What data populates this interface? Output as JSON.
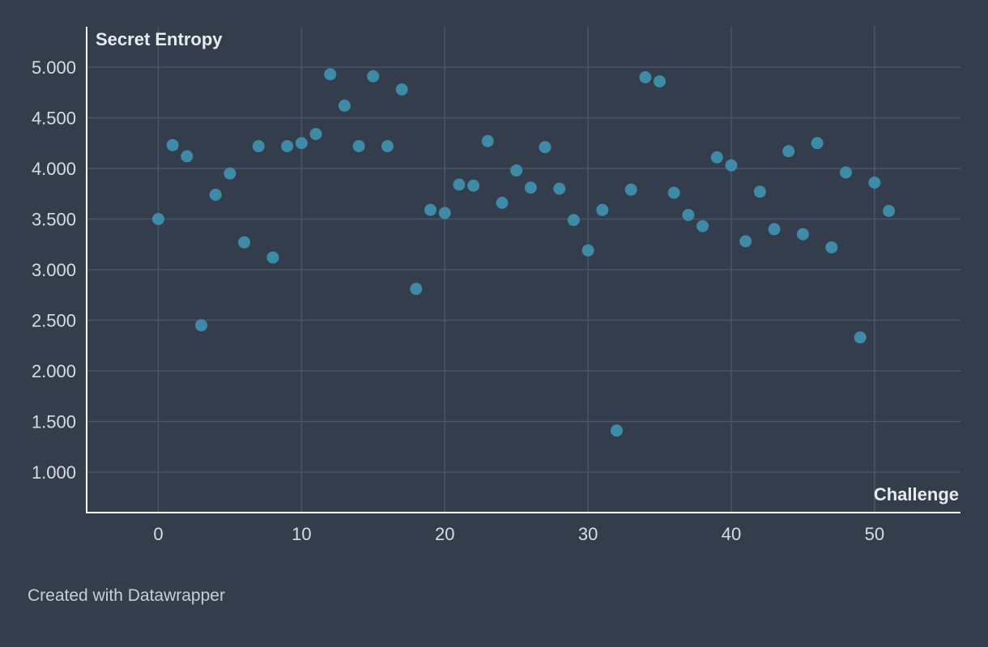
{
  "chart_data": {
    "type": "scatter",
    "title": "",
    "xlabel": "Challenge",
    "ylabel": "Secret Entropy",
    "xlim": [
      -5,
      56
    ],
    "ylim": [
      0.6,
      5.4
    ],
    "x_ticks": [
      0,
      10,
      20,
      30,
      40,
      50
    ],
    "y_ticks": [
      1.0,
      1.5,
      2.0,
      2.5,
      3.0,
      3.5,
      4.0,
      4.5,
      5.0
    ],
    "y_tick_labels": [
      "1.000",
      "1.500",
      "2.000",
      "2.500",
      "3.000",
      "3.500",
      "4.000",
      "4.500",
      "5.000"
    ],
    "grid": true,
    "colors": {
      "background": "#333d4c",
      "grid": "#4b5565",
      "axis": "#ffffff",
      "point": "#3e8ba8",
      "text": "#d8dde4"
    },
    "points": [
      {
        "x": 0,
        "y": 3.5
      },
      {
        "x": 1,
        "y": 4.23
      },
      {
        "x": 2,
        "y": 4.12
      },
      {
        "x": 3,
        "y": 2.45
      },
      {
        "x": 4,
        "y": 3.74
      },
      {
        "x": 5,
        "y": 3.95
      },
      {
        "x": 6,
        "y": 3.27
      },
      {
        "x": 7,
        "y": 4.22
      },
      {
        "x": 8,
        "y": 3.12
      },
      {
        "x": 9,
        "y": 4.22
      },
      {
        "x": 10,
        "y": 4.25
      },
      {
        "x": 11,
        "y": 4.34
      },
      {
        "x": 12,
        "y": 4.93
      },
      {
        "x": 13,
        "y": 4.62
      },
      {
        "x": 14,
        "y": 4.22
      },
      {
        "x": 15,
        "y": 4.91
      },
      {
        "x": 16,
        "y": 4.22
      },
      {
        "x": 17,
        "y": 4.78
      },
      {
        "x": 18,
        "y": 2.81
      },
      {
        "x": 19,
        "y": 3.59
      },
      {
        "x": 20,
        "y": 3.56
      },
      {
        "x": 21,
        "y": 3.84
      },
      {
        "x": 22,
        "y": 3.83
      },
      {
        "x": 23,
        "y": 4.27
      },
      {
        "x": 24,
        "y": 3.66
      },
      {
        "x": 25,
        "y": 3.98
      },
      {
        "x": 26,
        "y": 3.81
      },
      {
        "x": 27,
        "y": 4.21
      },
      {
        "x": 28,
        "y": 3.8
      },
      {
        "x": 29,
        "y": 3.49
      },
      {
        "x": 30,
        "y": 3.19
      },
      {
        "x": 31,
        "y": 3.59
      },
      {
        "x": 32,
        "y": 1.41
      },
      {
        "x": 33,
        "y": 3.79
      },
      {
        "x": 34,
        "y": 4.9
      },
      {
        "x": 35,
        "y": 4.86
      },
      {
        "x": 36,
        "y": 3.76
      },
      {
        "x": 37,
        "y": 3.54
      },
      {
        "x": 38,
        "y": 3.43
      },
      {
        "x": 39,
        "y": 4.11
      },
      {
        "x": 40,
        "y": 4.03
      },
      {
        "x": 41,
        "y": 3.28
      },
      {
        "x": 42,
        "y": 3.77
      },
      {
        "x": 43,
        "y": 3.4
      },
      {
        "x": 44,
        "y": 4.17
      },
      {
        "x": 45,
        "y": 3.35
      },
      {
        "x": 46,
        "y": 4.25
      },
      {
        "x": 47,
        "y": 3.22
      },
      {
        "x": 48,
        "y": 3.96
      },
      {
        "x": 49,
        "y": 2.33
      },
      {
        "x": 50,
        "y": 3.86
      },
      {
        "x": 51,
        "y": 3.58
      }
    ]
  },
  "footer": {
    "credit": "Created with Datawrapper"
  }
}
